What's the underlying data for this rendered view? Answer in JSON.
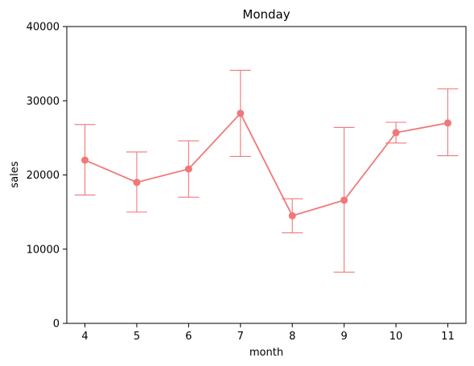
{
  "chart_data": {
    "type": "line",
    "title": "Monday",
    "xlabel": "month",
    "ylabel": "sales",
    "ylim": [
      0,
      40000
    ],
    "y_ticks": [
      "0",
      "10000",
      "20000",
      "30000",
      "40000"
    ],
    "x_tick_labels": [
      "4",
      "5",
      "6",
      "7",
      "8",
      "9",
      "10",
      "11"
    ],
    "x": [
      4,
      5,
      6,
      7,
      8,
      9,
      10,
      11
    ],
    "series": [
      {
        "values": [
          22000,
          19000,
          20800,
          28300,
          14500,
          16600,
          25700,
          27000
        ],
        "error_low": [
          17300,
          15000,
          17000,
          22500,
          12200,
          6900,
          24300,
          22600
        ],
        "error_high": [
          26800,
          23100,
          24600,
          34100,
          16800,
          26400,
          27100,
          31600
        ],
        "color": "#f07878"
      }
    ],
    "grid": false,
    "legend": "none"
  }
}
